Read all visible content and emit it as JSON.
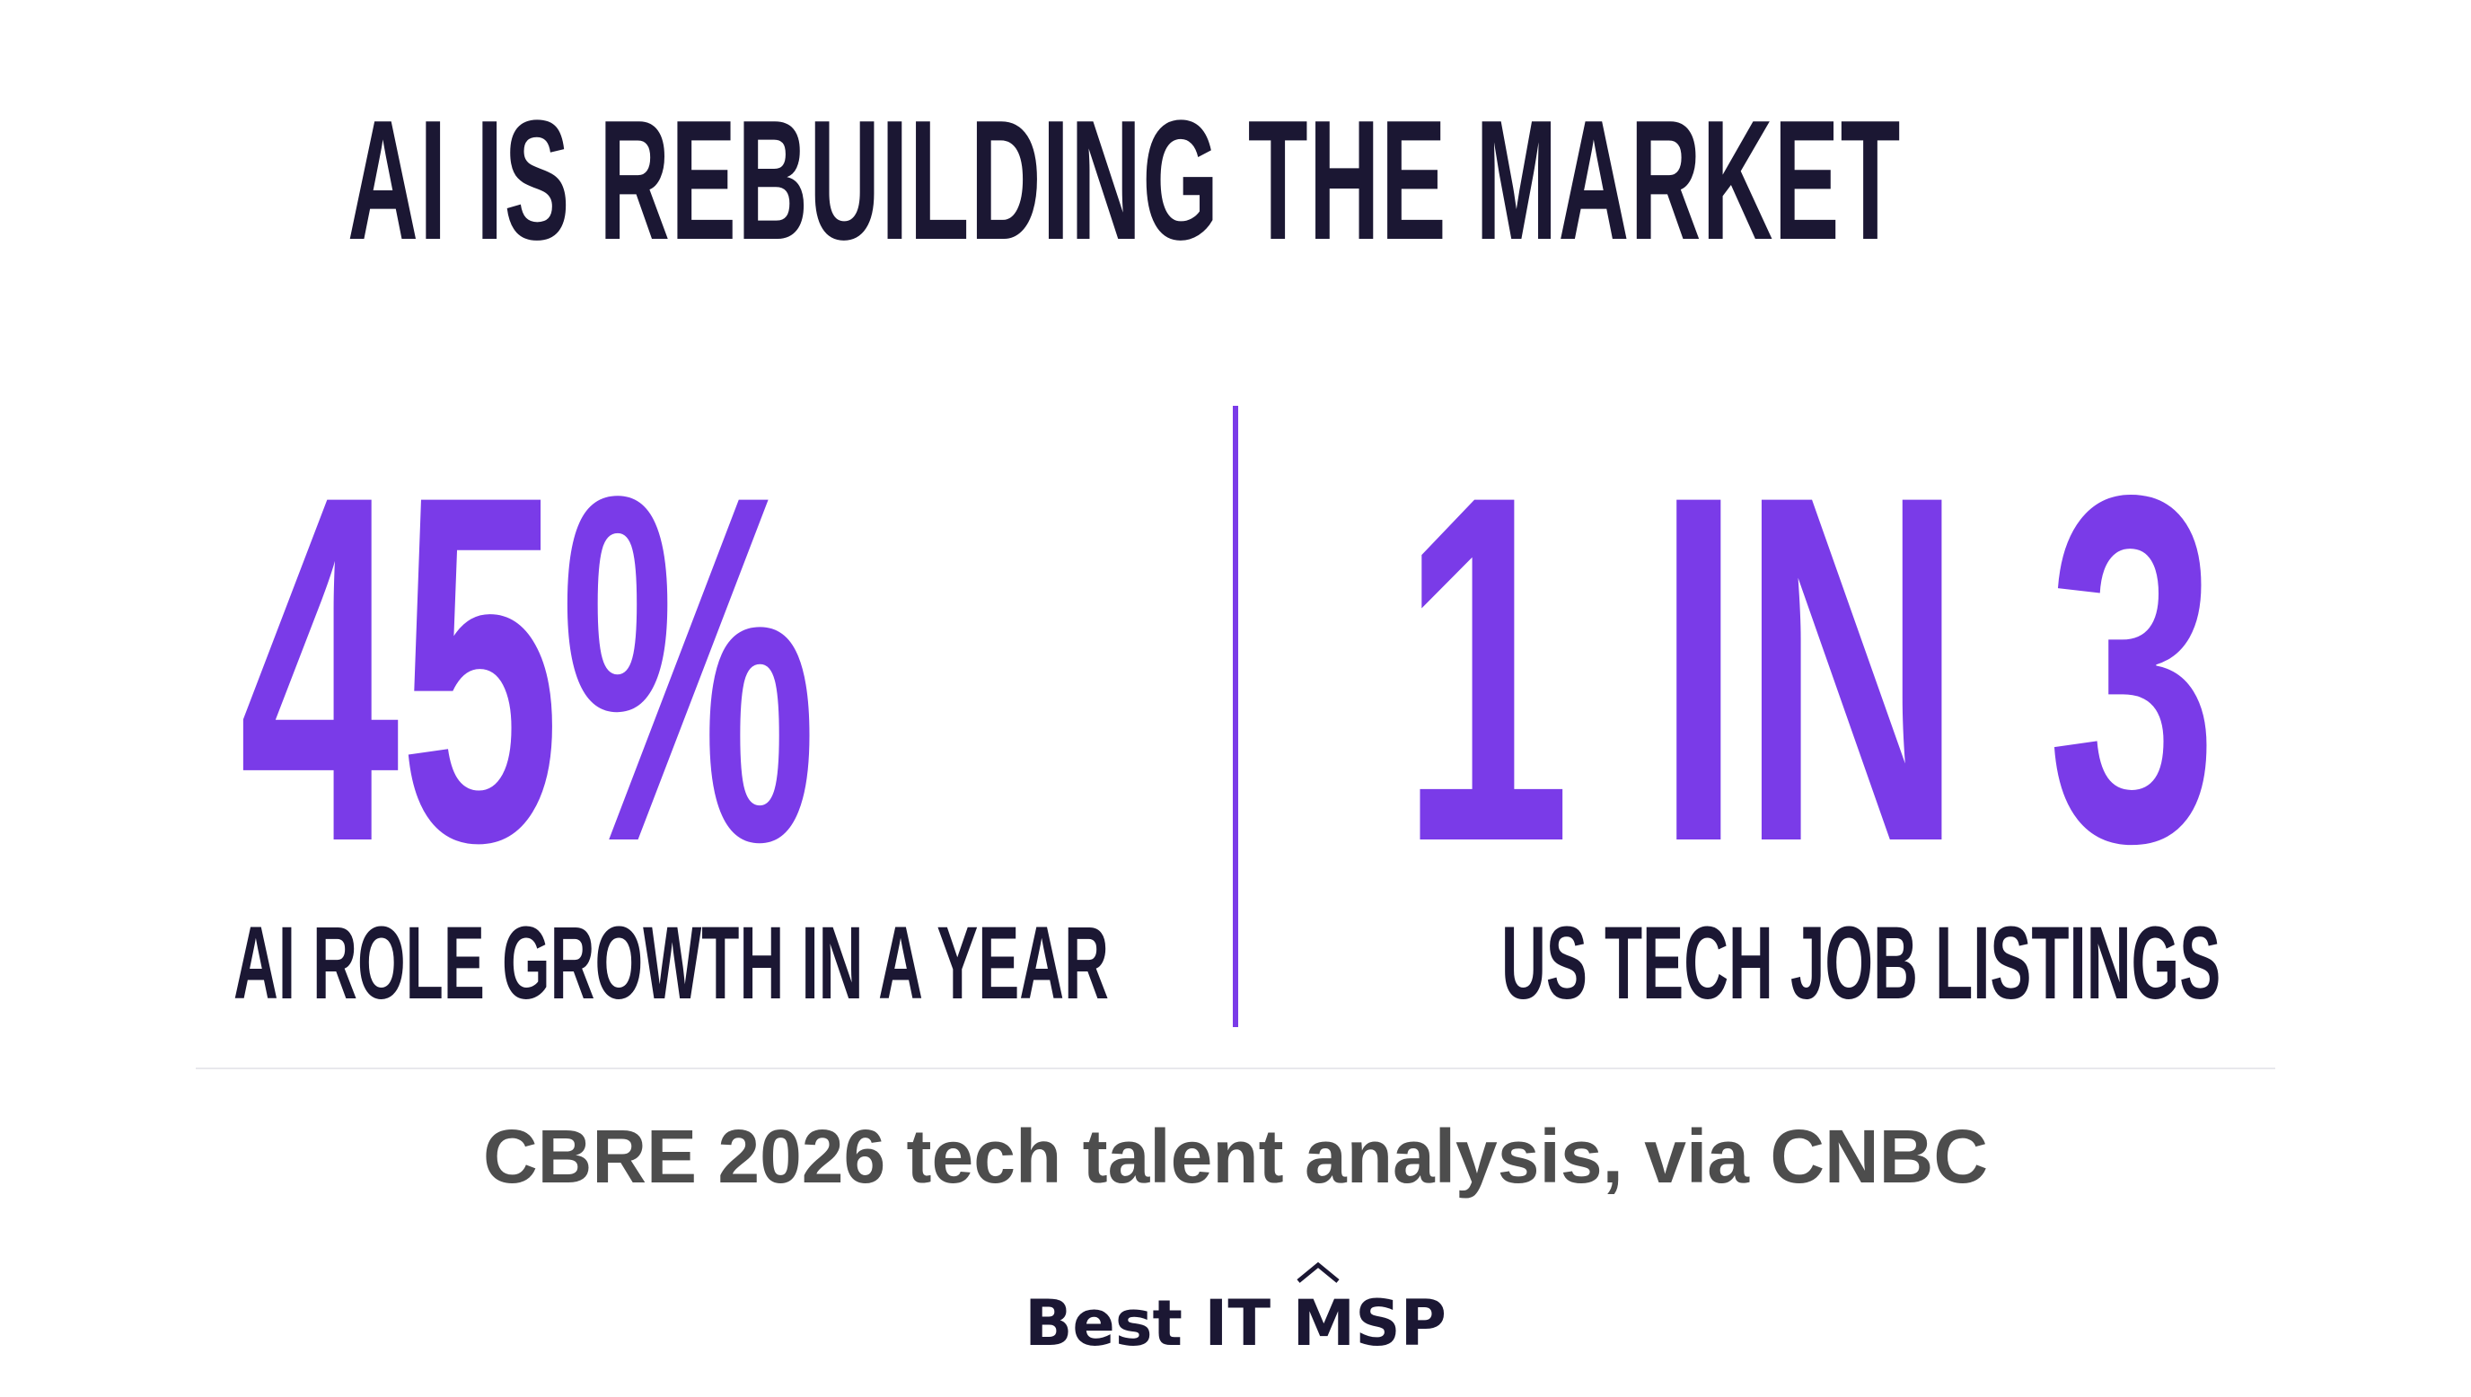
{
  "headline": "AI IS REBUILDING THE MARKET",
  "stats": [
    {
      "value": "45%",
      "label": "AI ROLE GROWTH IN A YEAR"
    },
    {
      "value": "1 IN 3",
      "label": "US TECH JOB LISTINGS"
    }
  ],
  "source": "CBRE 2026 tech talent analysis, via CNBC",
  "brand": {
    "name": "Best IT MSP",
    "mark_icon": "caret-up-icon"
  },
  "colors": {
    "accent": "#7a3be8",
    "heading": "#1b1733",
    "source_text": "#4d4d4d",
    "background": "#ffffff"
  }
}
